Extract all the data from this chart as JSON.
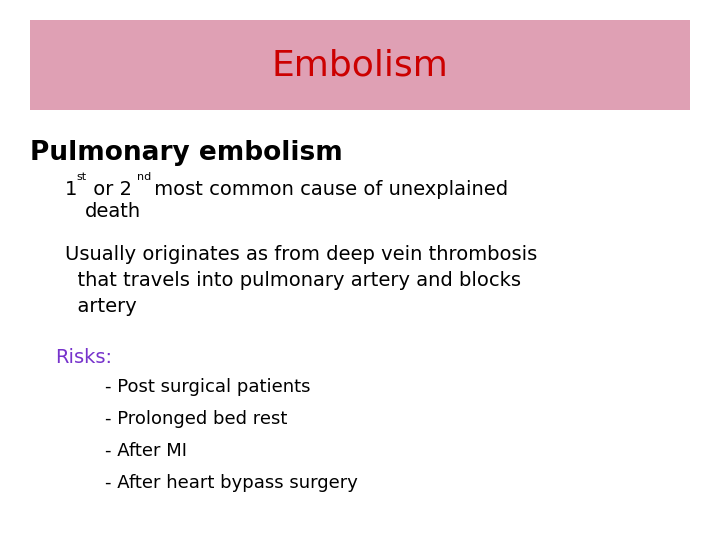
{
  "title": "Embolism",
  "title_color": "#cc0000",
  "title_bg_color": "#dfa0b4",
  "bg_color": "#ffffff",
  "heading": "Pulmonary embolism",
  "heading_color": "#000000",
  "risks_label": "Risks:",
  "risks_color": "#7733cc",
  "sub_bullets": [
    "- Post surgical patients",
    "- Prolonged bed rest",
    "- After MI",
    "- After heart bypass surgery"
  ],
  "sub_bullet_color": "#000000"
}
